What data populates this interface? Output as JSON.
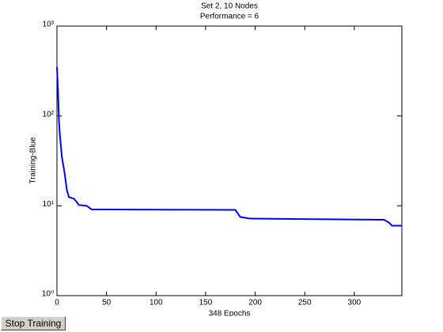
{
  "chart_data": {
    "type": "line",
    "title": [
      "Set 2, 10 Nodes",
      "Performance = 6"
    ],
    "xlabel": "348 Epochs",
    "ylabel": "Training-Blue",
    "log_y": true,
    "x": [
      0,
      1,
      2,
      3,
      5,
      8,
      10,
      12,
      17,
      20,
      22,
      30,
      35,
      180,
      185,
      195,
      330,
      335,
      338,
      348
    ],
    "series": [
      {
        "name": "Training",
        "color": "#0000ff",
        "values": [
          350,
          200,
          90,
          60,
          35,
          22,
          15,
          12.5,
          12,
          11,
          10.2,
          10,
          9.1,
          9,
          7.5,
          7.2,
          7,
          6.5,
          6,
          6
        ]
      }
    ],
    "xlim": [
      0,
      348
    ],
    "xticks": [
      0,
      50,
      100,
      150,
      200,
      250,
      300
    ],
    "ylim": [
      1,
      1000
    ],
    "yticks": [
      {
        "value": 1,
        "label": "10⁰"
      },
      {
        "value": 10,
        "label": "10¹"
      },
      {
        "value": 100,
        "label": "10²"
      },
      {
        "value": 1000,
        "label": "10³"
      }
    ]
  },
  "button": {
    "label": "Stop Training"
  }
}
